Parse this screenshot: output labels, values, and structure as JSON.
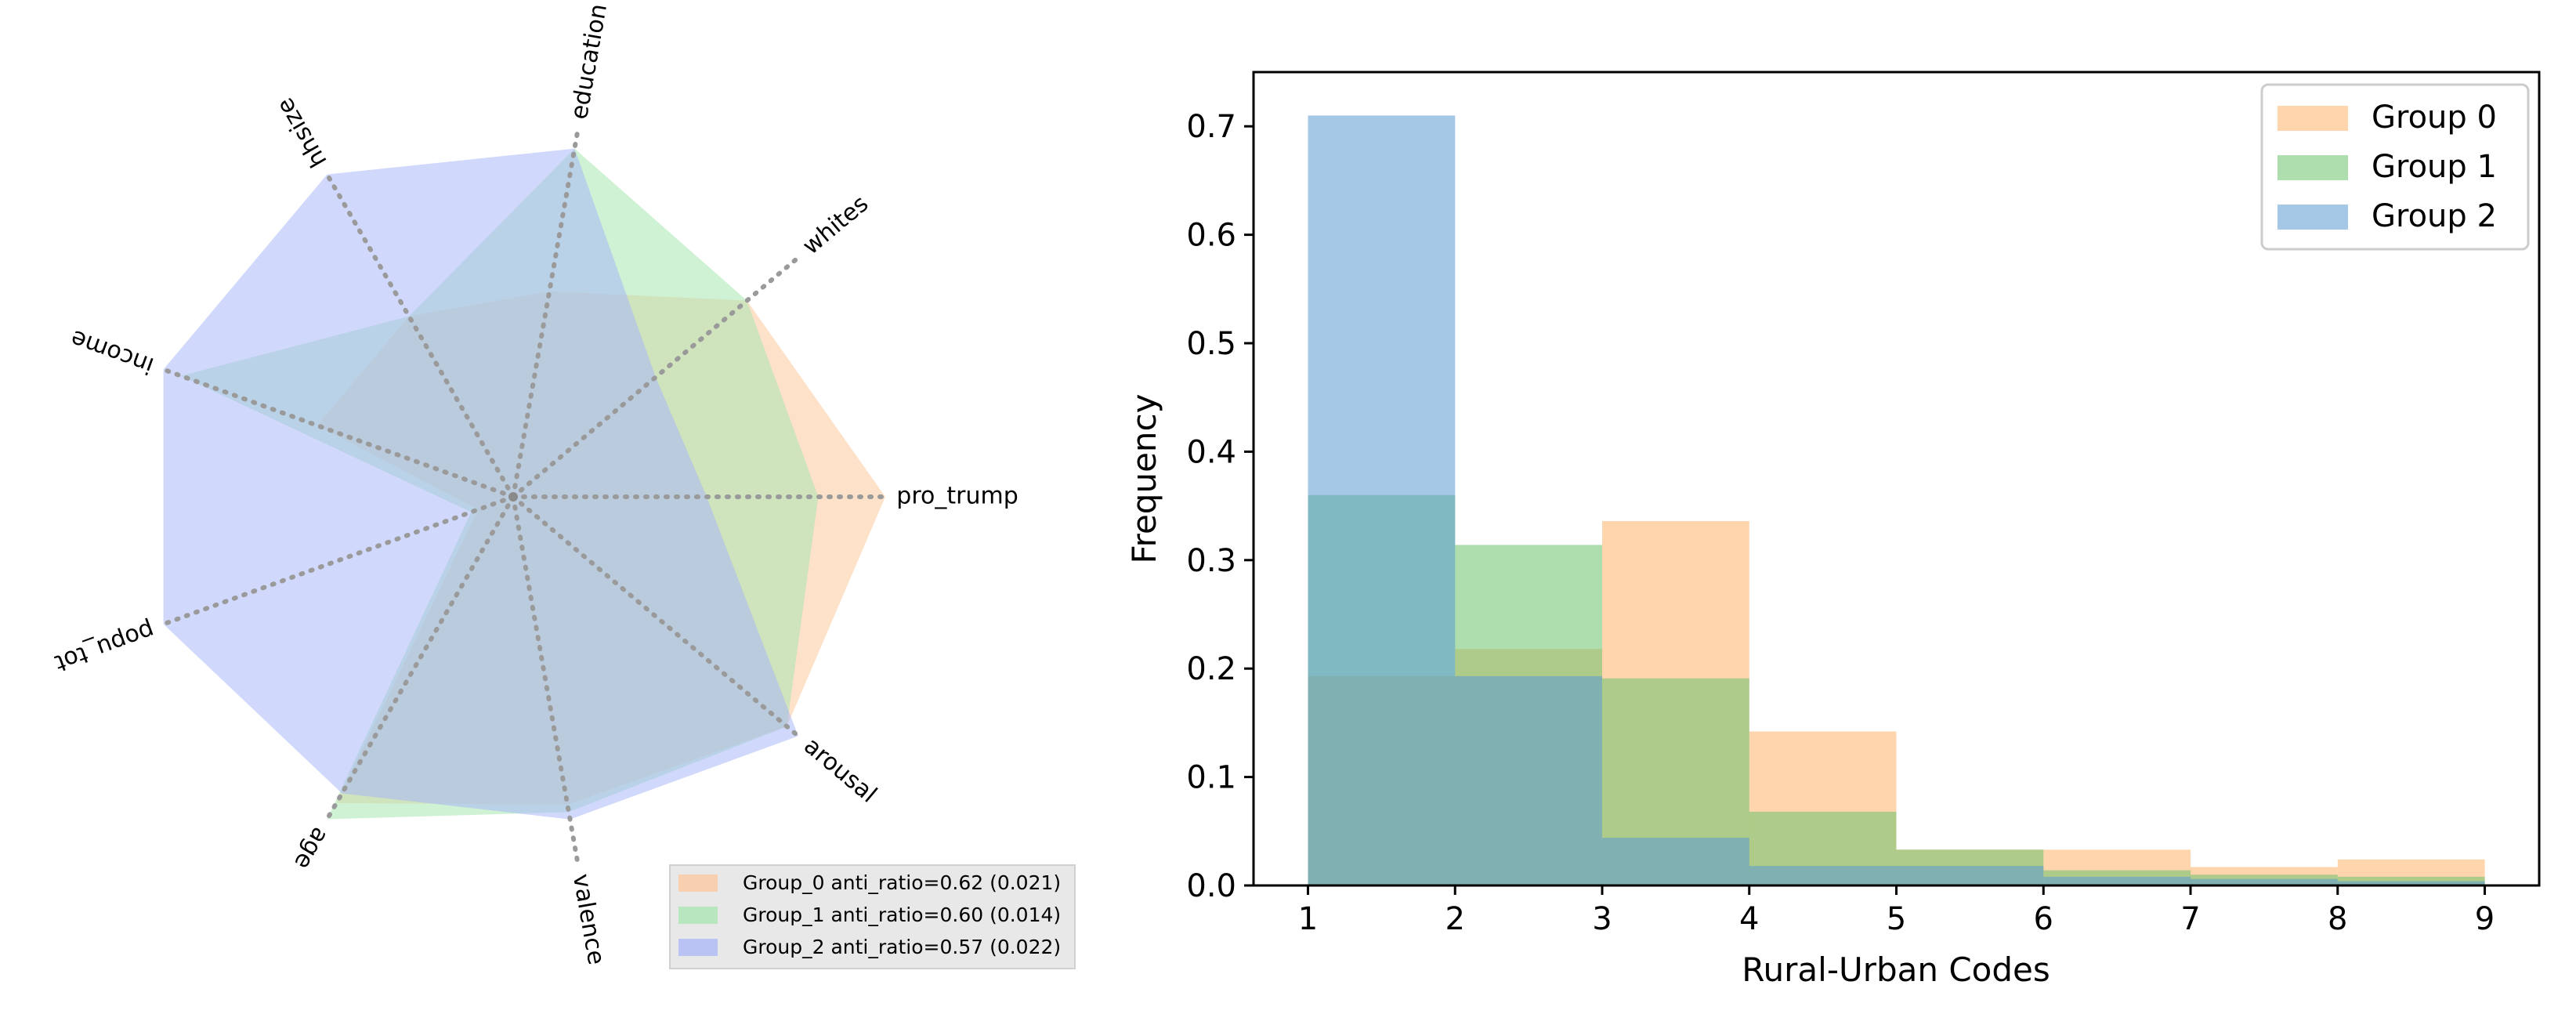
{
  "chart_data": [
    {
      "type": "radar",
      "axes": [
        "pro_trump",
        "whites",
        "education",
        "hhsize",
        "income",
        "popu_tot",
        "age",
        "valence",
        "arousal"
      ],
      "rmax": 1.0,
      "series": [
        {
          "name": "Group_0",
          "label": "Group_0 anti_ratio=0.62 (0.021)",
          "color": "#fdc89c",
          "values": [
            1.0,
            0.82,
            0.56,
            0.56,
            0.56,
            0.1,
            0.95,
            0.84,
            0.96
          ]
        },
        {
          "name": "Group_1",
          "label": "Group_1 anti_ratio=0.60 (0.014)",
          "color": "#a8e6b0",
          "values": [
            0.82,
            0.82,
            0.95,
            0.56,
            0.95,
            0.12,
            1.0,
            0.86,
            0.96
          ]
        },
        {
          "name": "Group_2",
          "label": "Group_2 anti_ratio=0.57 (0.022)",
          "color": "#aab8f8",
          "values": [
            0.52,
            0.5,
            0.95,
            1.0,
            1.0,
            1.0,
            0.92,
            0.88,
            1.0
          ]
        }
      ]
    },
    {
      "type": "histogram",
      "xlabel": "Rural-Urban Codes",
      "ylabel": "Frequency",
      "xlim": [
        0.63,
        9.37
      ],
      "ylim": [
        0,
        0.75
      ],
      "xticks": [
        "1",
        "2",
        "3",
        "4",
        "5",
        "6",
        "7",
        "8",
        "9"
      ],
      "yticks": [
        "0.0",
        "0.1",
        "0.2",
        "0.3",
        "0.4",
        "0.5",
        "0.6",
        "0.7"
      ],
      "bin_edges": [
        1,
        2,
        3,
        4,
        5,
        6,
        7,
        8,
        9
      ],
      "legend_location": "upper right",
      "series": [
        {
          "name": "Group 0",
          "color": "#ffb36a",
          "values": [
            0.193,
            0.218,
            0.336,
            0.142,
            0.033,
            0.033,
            0.017,
            0.024
          ]
        },
        {
          "name": "Group 1",
          "color": "#6cc36c",
          "values": [
            0.36,
            0.314,
            0.191,
            0.068,
            0.033,
            0.014,
            0.01,
            0.008
          ]
        },
        {
          "name": "Group 2",
          "color": "#5b9bd1",
          "values": [
            0.71,
            0.193,
            0.044,
            0.018,
            0.018,
            0.008,
            0.006,
            0.004
          ]
        }
      ]
    }
  ]
}
